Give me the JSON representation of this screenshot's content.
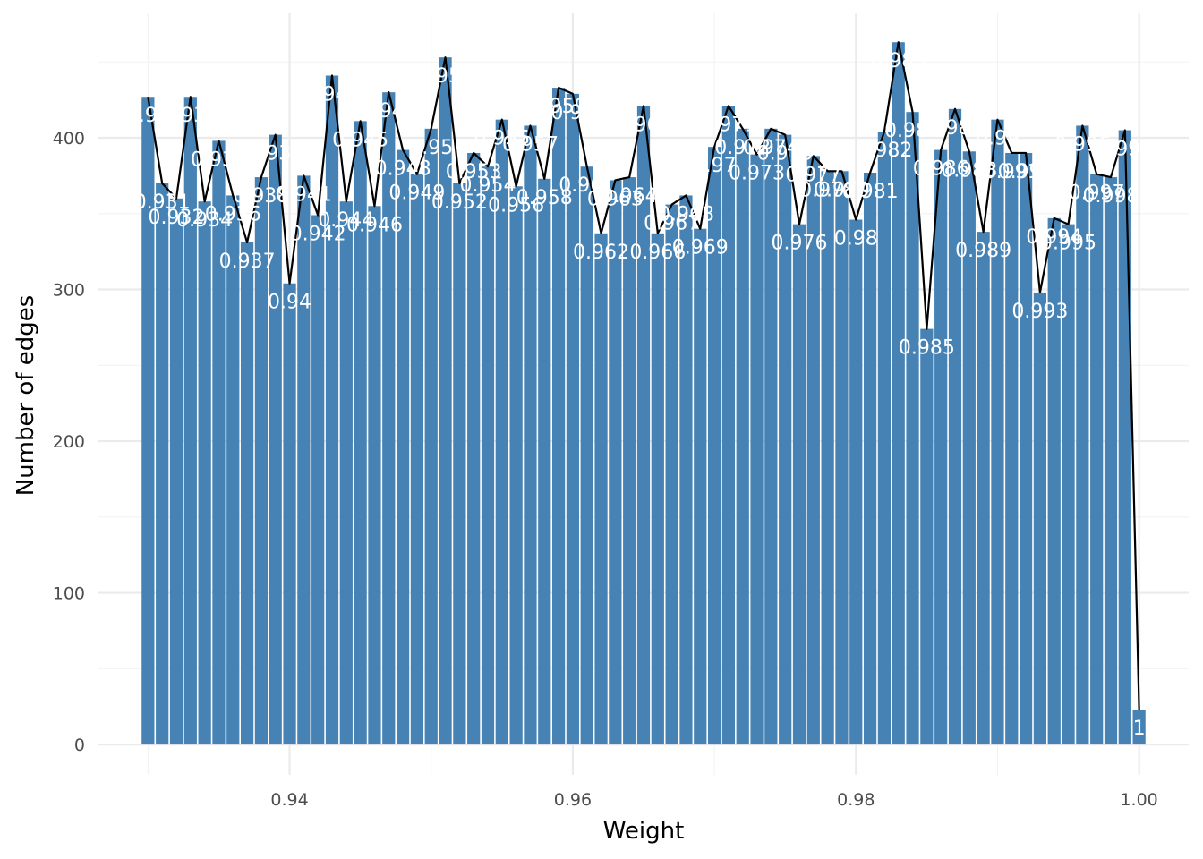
{
  "colors": {
    "bar": "#4682b4",
    "line": "#000000",
    "label": "#ffffff",
    "grid": "#ebebeb"
  },
  "chart_data": {
    "type": "bar",
    "title": "",
    "xlabel": "Weight",
    "ylabel": "Number of edges",
    "xlim": [
      0.9265,
      1.0035
    ],
    "ylim": [
      -20,
      482
    ],
    "grid": true,
    "x_ticks": [
      {
        "value": 0.94,
        "label": "0.94"
      },
      {
        "value": 0.96,
        "label": "0.96"
      },
      {
        "value": 0.98,
        "label": "0.98"
      },
      {
        "value": 1.0,
        "label": "1.00"
      }
    ],
    "y_ticks": [
      {
        "value": 0,
        "label": "0"
      },
      {
        "value": 100,
        "label": "100"
      },
      {
        "value": 200,
        "label": "200"
      },
      {
        "value": 300,
        "label": "300"
      },
      {
        "value": 400,
        "label": "400"
      }
    ],
    "x": [
      0.93,
      0.931,
      0.932,
      0.933,
      0.934,
      0.935,
      0.936,
      0.937,
      0.938,
      0.939,
      0.94,
      0.941,
      0.942,
      0.943,
      0.944,
      0.945,
      0.946,
      0.947,
      0.948,
      0.949,
      0.95,
      0.951,
      0.952,
      0.953,
      0.954,
      0.955,
      0.956,
      0.957,
      0.958,
      0.959,
      0.96,
      0.961,
      0.962,
      0.963,
      0.964,
      0.965,
      0.966,
      0.967,
      0.968,
      0.969,
      0.97,
      0.971,
      0.972,
      0.973,
      0.974,
      0.975,
      0.976,
      0.977,
      0.978,
      0.979,
      0.98,
      0.981,
      0.982,
      0.983,
      0.984,
      0.985,
      0.986,
      0.987,
      0.988,
      0.989,
      0.99,
      0.991,
      0.992,
      0.993,
      0.994,
      0.995,
      0.996,
      0.997,
      0.998,
      0.999,
      1.0
    ],
    "values": [
      427,
      370,
      360,
      427,
      358,
      398,
      362,
      331,
      374,
      402,
      304,
      375,
      349,
      441,
      358,
      411,
      355,
      430,
      392,
      376,
      406,
      453,
      370,
      390,
      381,
      412,
      368,
      408,
      373,
      433,
      429,
      381,
      337,
      372,
      374,
      421,
      337,
      356,
      362,
      340,
      394,
      421,
      406,
      389,
      406,
      402,
      343,
      388,
      378,
      378,
      346,
      377,
      404,
      463,
      417,
      274,
      392,
      419,
      391,
      338,
      412,
      390,
      390,
      298,
      347,
      343,
      408,
      376,
      374,
      405,
      23
    ],
    "labels": [
      "0.93",
      "0.931",
      "0.932",
      "0.933",
      "0.934",
      "0.935",
      "0.936",
      "0.937",
      "0.938",
      "0.939",
      "0.94",
      "0.941",
      "0.942",
      "0.943",
      "0.944",
      "0.945",
      "0.946",
      "0.947",
      "0.948",
      "0.949",
      "0.95",
      "0.951",
      "0.952",
      "0.953",
      "0.954",
      "0.955",
      "0.956",
      "0.957",
      "0.958",
      "0.959",
      "0.96",
      "0.961",
      "0.962",
      "0.963",
      "0.964",
      "0.965",
      "0.966",
      "0.967",
      "0.968",
      "0.969",
      "0.97",
      "0.971",
      "0.972",
      "0.973",
      "0.974",
      "0.975",
      "0.976",
      "0.977",
      "0.978",
      "0.979",
      "0.98",
      "0.981",
      "0.982",
      "0.983",
      "0.984",
      "0.985",
      "0.986",
      "0.987",
      "0.988",
      "0.989",
      "0.99",
      "0.991",
      "0.992",
      "0.993",
      "0.994",
      "0.995",
      "0.996",
      "0.997",
      "0.998",
      "0.999",
      "1"
    ],
    "overlay": "line"
  }
}
